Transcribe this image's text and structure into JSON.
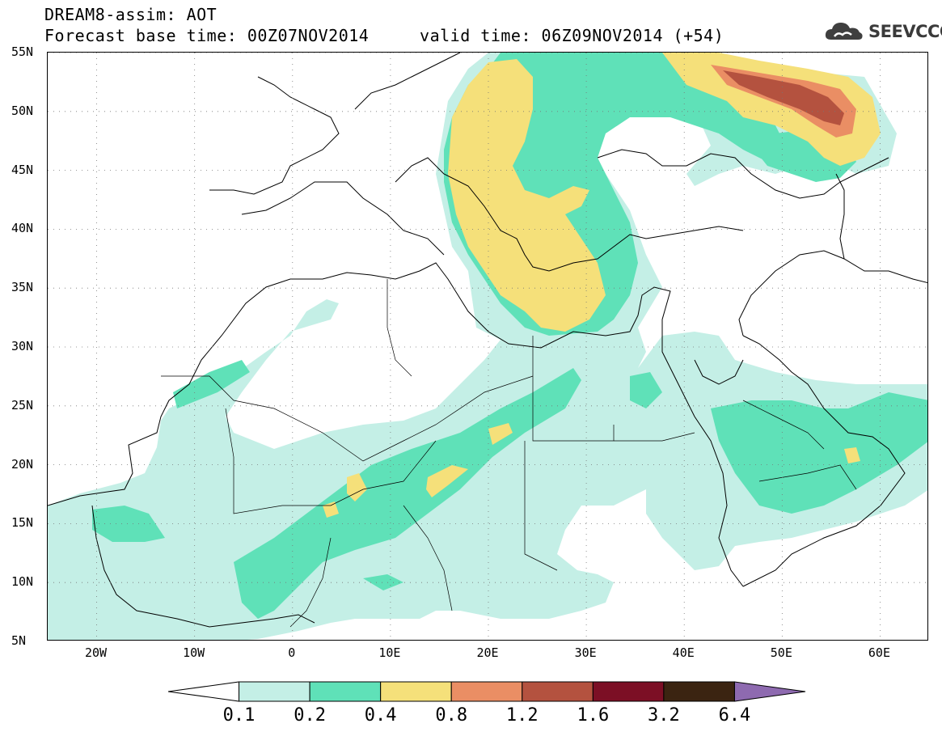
{
  "header": {
    "title": "DREAM8-assim: AOT",
    "base_time_label": "Forecast base time: 00Z07NOV2014",
    "valid_time_label": "valid time: 06Z09NOV2014 (+54)"
  },
  "logo": {
    "text": "SEEVCCC",
    "icon": "cloud-icon"
  },
  "map": {
    "lon_range": [
      -25,
      65
    ],
    "lat_range": [
      5,
      55
    ],
    "lon_ticks": [
      {
        "value": -20,
        "label": "20W"
      },
      {
        "value": -10,
        "label": "10W"
      },
      {
        "value": 0,
        "label": "0"
      },
      {
        "value": 10,
        "label": "10E"
      },
      {
        "value": 20,
        "label": "20E"
      },
      {
        "value": 30,
        "label": "30E"
      },
      {
        "value": 40,
        "label": "40E"
      },
      {
        "value": 50,
        "label": "50E"
      },
      {
        "value": 60,
        "label": "60E"
      }
    ],
    "lat_ticks": [
      {
        "value": 55,
        "label": "55N"
      },
      {
        "value": 50,
        "label": "50N"
      },
      {
        "value": 45,
        "label": "45N"
      },
      {
        "value": 40,
        "label": "40N"
      },
      {
        "value": 35,
        "label": "35N"
      },
      {
        "value": 30,
        "label": "30N"
      },
      {
        "value": 25,
        "label": "25N"
      },
      {
        "value": 20,
        "label": "20N"
      },
      {
        "value": 15,
        "label": "15N"
      },
      {
        "value": 10,
        "label": "10N"
      },
      {
        "value": 5,
        "label": "5N"
      }
    ],
    "grid": "dotted"
  },
  "colorbar": {
    "colors": [
      "#ffffff",
      "#c4efe6",
      "#5fe1b8",
      "#f5e07a",
      "#ea8e64",
      "#b4523f",
      "#7c0f25",
      "#3b2411",
      "#8e6ab0"
    ],
    "labels": [
      "0.1",
      "0.2",
      "0.4",
      "0.8",
      "1.2",
      "1.6",
      "3.2",
      "6.4"
    ]
  }
}
